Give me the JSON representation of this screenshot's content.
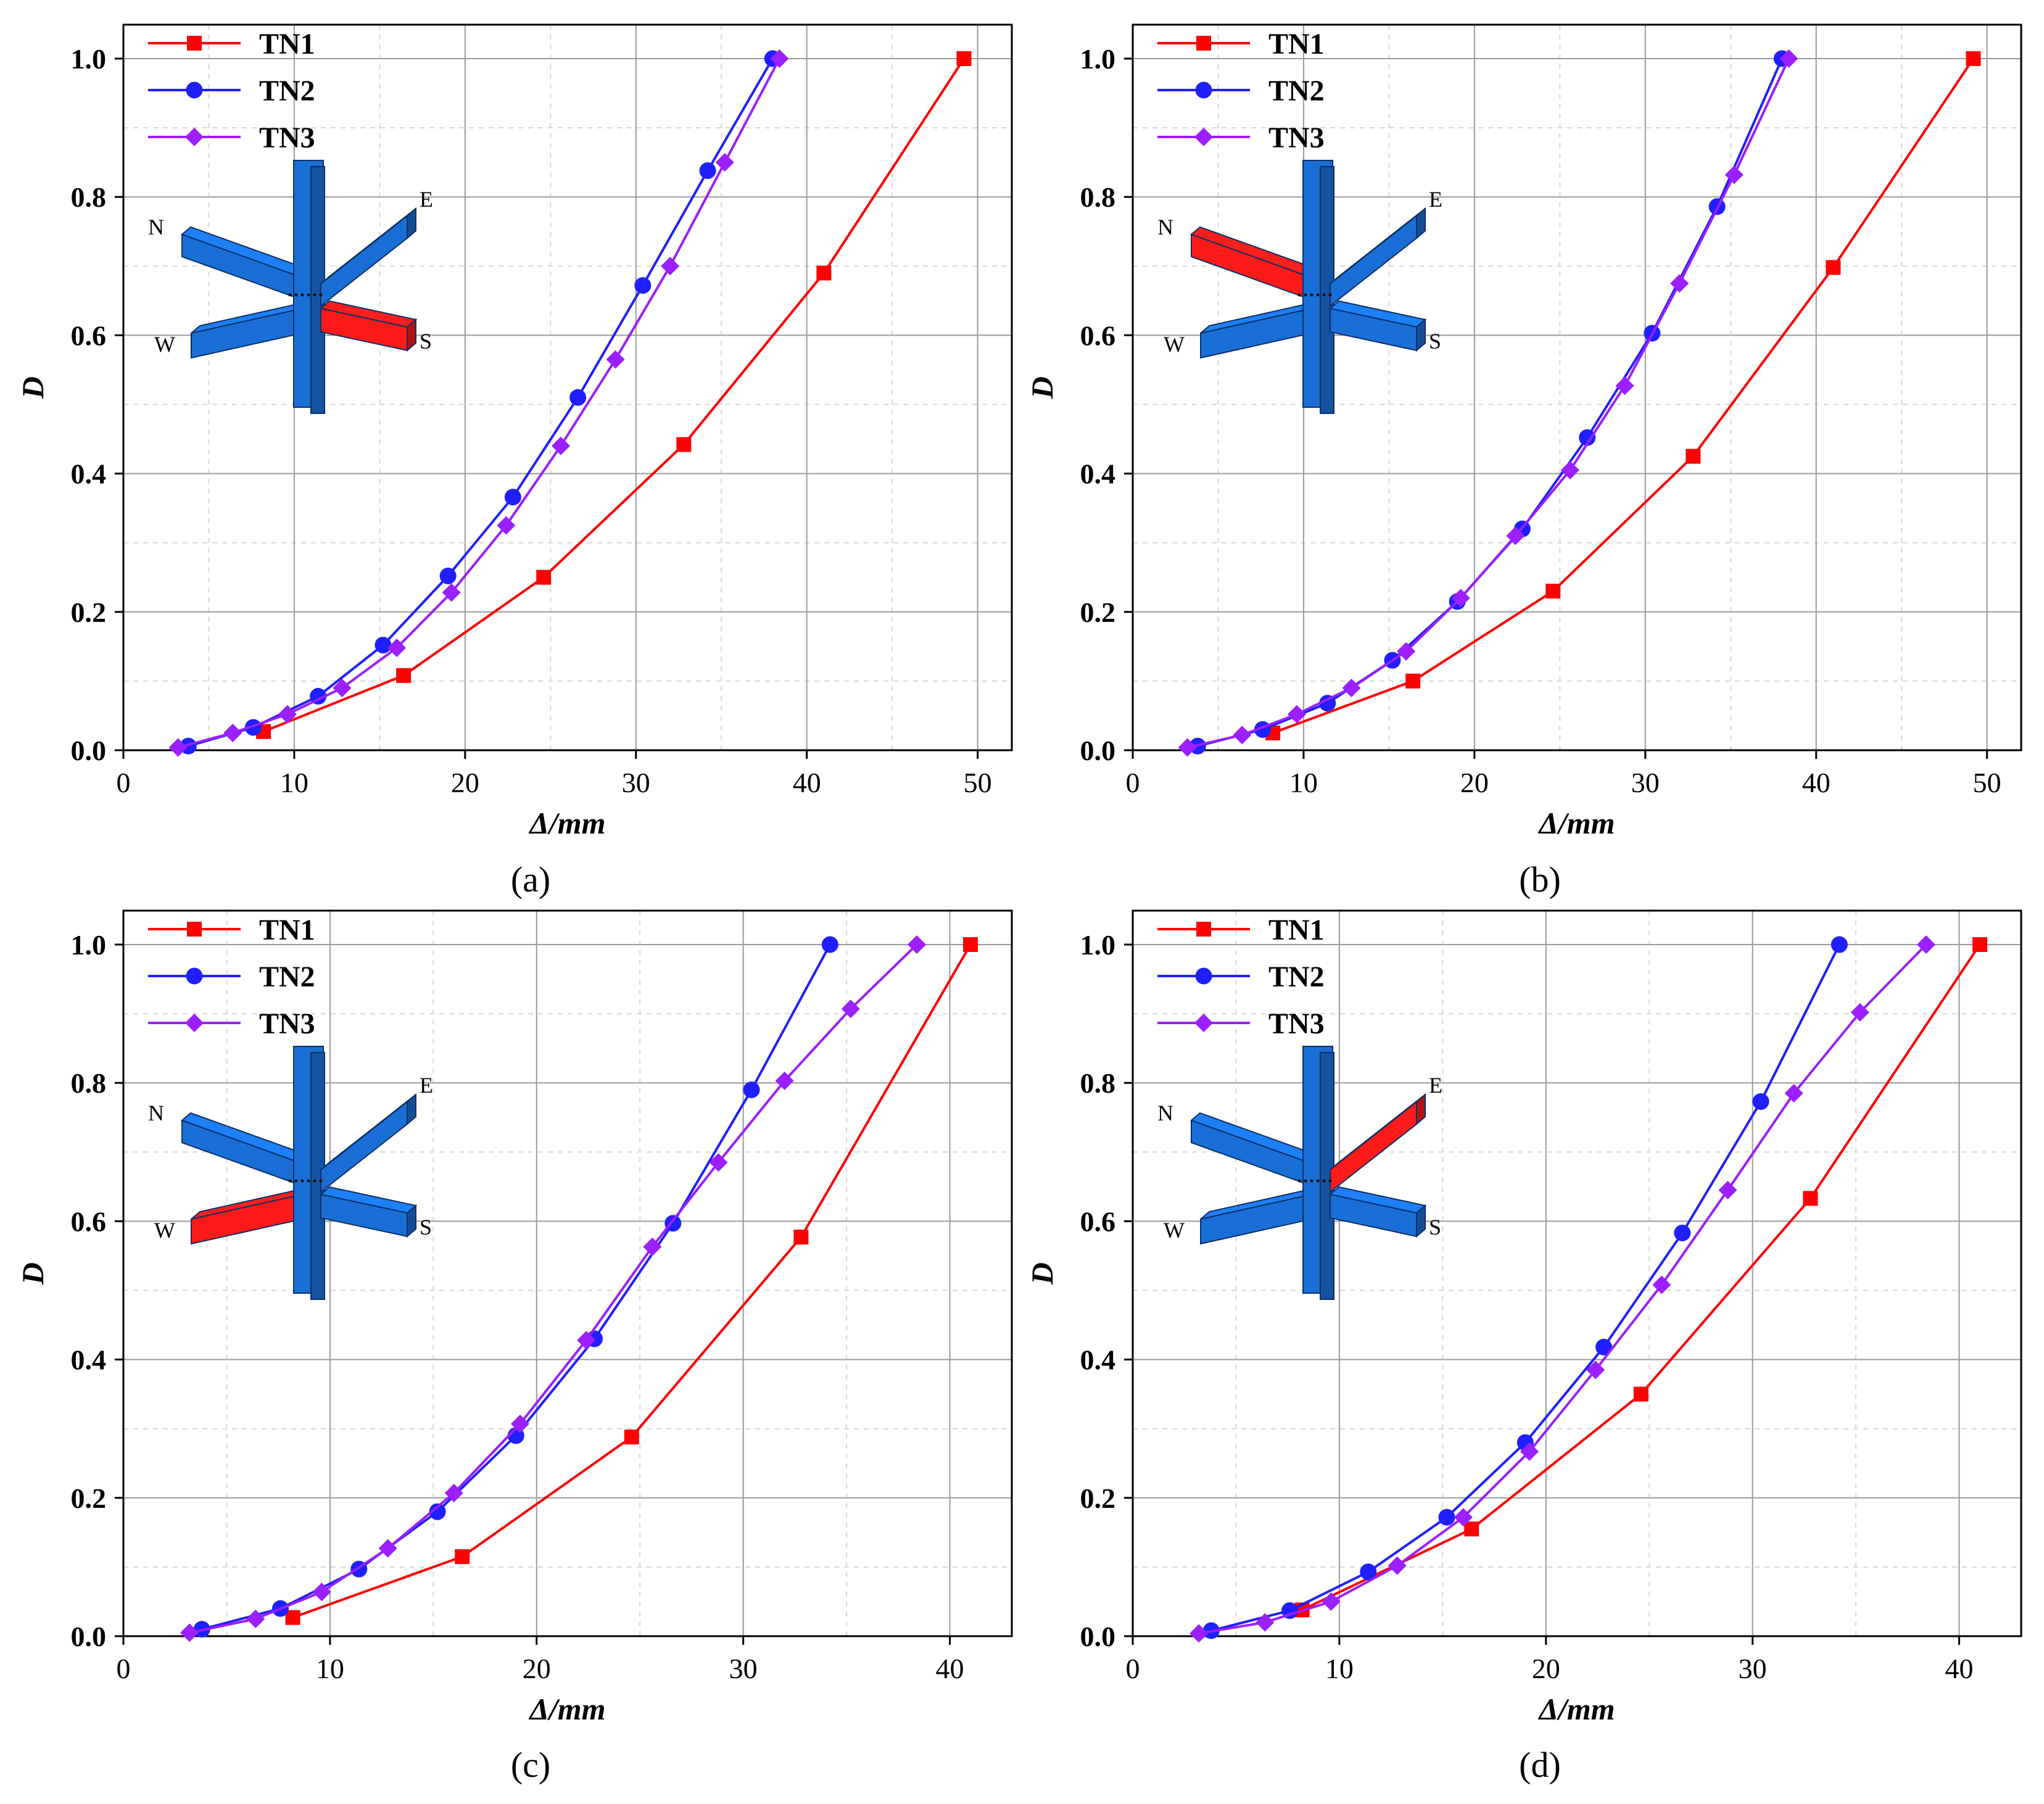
{
  "colors": {
    "TN1": "#ff0000",
    "TN2": "#1f1fff",
    "TN3": "#9b1fff",
    "beam_blue": "#1a6fd6",
    "beam_highlight": "#ff1a1a",
    "grid": "#9a9a9a",
    "axis": "#000000"
  },
  "chart_data": [
    {
      "type": "line",
      "panel_label": "(a)",
      "xlabel": "Δ/mm",
      "ylabel": "D",
      "xlim": [
        0,
        52
      ],
      "ylim": [
        0,
        1.0
      ],
      "xticks": [
        0,
        10,
        20,
        30,
        40,
        50
      ],
      "yticks": [
        0.0,
        0.2,
        0.4,
        0.6,
        0.8,
        1.0
      ],
      "grid": true,
      "legend_position": "top-left",
      "inset": {
        "highlighted_beam": "S",
        "direction_labels": [
          "N",
          "E",
          "W",
          "S"
        ]
      },
      "series": [
        {
          "name": "TN1",
          "marker": "square",
          "x": [
            8.2,
            16.4,
            24.6,
            32.8,
            41.0,
            49.2
          ],
          "y": [
            0.027,
            0.108,
            0.25,
            0.442,
            0.69,
            1.0
          ]
        },
        {
          "name": "TN2",
          "marker": "circle",
          "x": [
            3.8,
            7.6,
            11.4,
            15.2,
            19.0,
            22.8,
            26.6,
            30.4,
            34.2,
            38.0
          ],
          "y": [
            0.006,
            0.033,
            0.078,
            0.152,
            0.252,
            0.366,
            0.51,
            0.672,
            0.838,
            1.0
          ]
        },
        {
          "name": "TN3",
          "marker": "diamond",
          "x": [
            3.2,
            6.4,
            9.6,
            12.8,
            16.0,
            19.2,
            22.4,
            25.6,
            28.8,
            32.0,
            35.2,
            38.4
          ],
          "y": [
            0.004,
            0.025,
            0.052,
            0.09,
            0.148,
            0.228,
            0.325,
            0.44,
            0.565,
            0.7,
            0.85,
            1.0
          ]
        }
      ]
    },
    {
      "type": "line",
      "panel_label": "(b)",
      "xlabel": "Δ/mm",
      "ylabel": "D",
      "xlim": [
        0,
        52
      ],
      "ylim": [
        0,
        1.0
      ],
      "xticks": [
        0,
        10,
        20,
        30,
        40,
        50
      ],
      "yticks": [
        0.0,
        0.2,
        0.4,
        0.6,
        0.8,
        1.0
      ],
      "grid": true,
      "legend_position": "top-left",
      "inset": {
        "highlighted_beam": "N",
        "direction_labels": [
          "N",
          "E",
          "W",
          "S"
        ]
      },
      "series": [
        {
          "name": "TN1",
          "marker": "square",
          "x": [
            8.2,
            16.4,
            24.6,
            32.8,
            41.0,
            49.2
          ],
          "y": [
            0.025,
            0.1,
            0.23,
            0.425,
            0.698,
            1.0
          ]
        },
        {
          "name": "TN2",
          "marker": "circle",
          "x": [
            3.8,
            7.6,
            11.4,
            15.2,
            19.0,
            22.8,
            26.6,
            30.4,
            34.2,
            38.0
          ],
          "y": [
            0.006,
            0.03,
            0.068,
            0.13,
            0.215,
            0.32,
            0.452,
            0.603,
            0.786,
            1.0
          ]
        },
        {
          "name": "TN3",
          "marker": "diamond",
          "x": [
            3.2,
            6.4,
            9.6,
            12.8,
            16.0,
            19.2,
            22.4,
            25.6,
            28.8,
            32.0,
            35.2,
            38.4
          ],
          "y": [
            0.004,
            0.022,
            0.052,
            0.09,
            0.143,
            0.22,
            0.31,
            0.405,
            0.527,
            0.675,
            0.832,
            1.0
          ]
        }
      ]
    },
    {
      "type": "line",
      "panel_label": "(c)",
      "xlabel": "Δ/mm",
      "ylabel": "D",
      "xlim": [
        0,
        43
      ],
      "ylim": [
        0,
        1.0
      ],
      "xticks": [
        0,
        10,
        20,
        30,
        40
      ],
      "yticks": [
        0.0,
        0.2,
        0.4,
        0.6,
        0.8,
        1.0
      ],
      "grid": true,
      "legend_position": "top-left",
      "inset": {
        "highlighted_beam": "W",
        "direction_labels": [
          "N",
          "E",
          "W",
          "S"
        ]
      },
      "series": [
        {
          "name": "TN1",
          "marker": "square",
          "x": [
            8.2,
            16.4,
            24.6,
            32.8,
            41.0
          ],
          "y": [
            0.027,
            0.115,
            0.288,
            0.577,
            1.0
          ]
        },
        {
          "name": "TN2",
          "marker": "circle",
          "x": [
            3.8,
            7.6,
            11.4,
            15.2,
            19.0,
            22.8,
            26.6,
            30.4,
            34.2
          ],
          "y": [
            0.01,
            0.04,
            0.097,
            0.18,
            0.29,
            0.43,
            0.597,
            0.79,
            1.0
          ]
        },
        {
          "name": "TN3",
          "marker": "diamond",
          "x": [
            3.2,
            6.4,
            9.6,
            12.8,
            16.0,
            19.2,
            22.4,
            25.6,
            28.8,
            32.0,
            35.2,
            38.4
          ],
          "y": [
            0.005,
            0.025,
            0.064,
            0.127,
            0.207,
            0.307,
            0.428,
            0.563,
            0.685,
            0.803,
            0.907,
            1.0
          ]
        }
      ]
    },
    {
      "type": "line",
      "panel_label": "(d)",
      "xlabel": "Δ/mm",
      "ylabel": "D",
      "xlim": [
        0,
        43
      ],
      "ylim": [
        0,
        1.0
      ],
      "xticks": [
        0,
        10,
        20,
        30,
        40
      ],
      "yticks": [
        0.0,
        0.2,
        0.4,
        0.6,
        0.8,
        1.0
      ],
      "grid": true,
      "legend_position": "top-left",
      "inset": {
        "highlighted_beam": "E",
        "direction_labels": [
          "N",
          "E",
          "W",
          "S"
        ]
      },
      "series": [
        {
          "name": "TN1",
          "marker": "square",
          "x": [
            8.2,
            16.4,
            24.6,
            32.8,
            41.0
          ],
          "y": [
            0.038,
            0.155,
            0.35,
            0.633,
            1.0
          ]
        },
        {
          "name": "TN2",
          "marker": "circle",
          "x": [
            3.8,
            7.6,
            11.4,
            15.2,
            19.0,
            22.8,
            26.6,
            30.4,
            34.2
          ],
          "y": [
            0.008,
            0.037,
            0.093,
            0.172,
            0.28,
            0.418,
            0.583,
            0.773,
            1.0
          ]
        },
        {
          "name": "TN3",
          "marker": "diamond",
          "x": [
            3.2,
            6.4,
            9.6,
            12.8,
            16.0,
            19.2,
            22.4,
            25.6,
            28.8,
            32.0,
            35.2,
            38.4
          ],
          "y": [
            0.004,
            0.02,
            0.05,
            0.102,
            0.172,
            0.267,
            0.385,
            0.508,
            0.645,
            0.785,
            0.902,
            1.0
          ]
        }
      ]
    }
  ]
}
